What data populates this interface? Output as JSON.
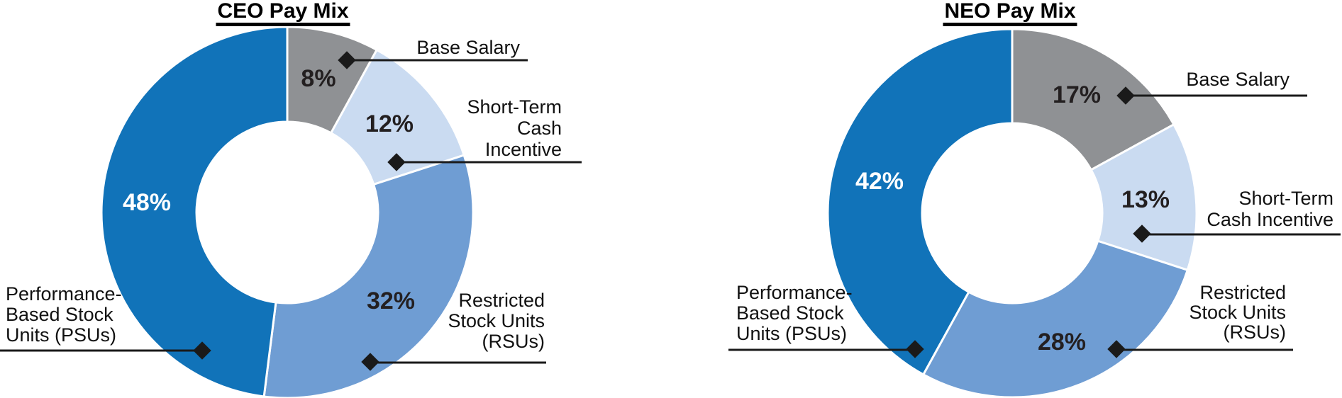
{
  "chart_data": [
    {
      "type": "pie",
      "subtype": "donut",
      "title": "CEO Pay Mix",
      "direction": "clockwise",
      "start_angle": "12 o'clock",
      "categories": [
        "Base Salary",
        "Short-Term Cash Incentive",
        "Restricted Stock Units (RSUs)",
        "Performance-Based Stock Units (PSUs)"
      ],
      "values": [
        8,
        12,
        32,
        48
      ],
      "value_labels": [
        "8%",
        "12%",
        "32%",
        "48%"
      ],
      "colors": [
        "#8F9194",
        "#CADBF1",
        "#6F9DD3",
        "#1173B9"
      ],
      "callout_lines": [
        [
          "Base Salary"
        ],
        [
          "Short-Term",
          "Cash",
          "Incentive"
        ],
        [
          "Restricted",
          "Stock Units",
          "(RSUs)"
        ],
        [
          "Performance-",
          "Based Stock",
          "Units (PSUs)"
        ]
      ]
    },
    {
      "type": "pie",
      "subtype": "donut",
      "title": "NEO Pay Mix",
      "direction": "clockwise",
      "start_angle": "12 o'clock",
      "categories": [
        "Base Salary",
        "Short-Term Cash Incentive",
        "Restricted Stock Units (RSUs)",
        "Performance-Based Stock Units (PSUs)"
      ],
      "values": [
        17,
        13,
        28,
        42
      ],
      "value_labels": [
        "17%",
        "13%",
        "28%",
        "42%"
      ],
      "colors": [
        "#8F9194",
        "#CADBF1",
        "#6F9DD3",
        "#1173B9"
      ],
      "callout_lines": [
        [
          "Base Salary"
        ],
        [
          "Short-Term",
          "Cash Incentive"
        ],
        [
          "Restricted",
          "Stock Units",
          "(RSUs)"
        ],
        [
          "Performance-",
          "Based Stock",
          "Units (PSUs)"
        ]
      ]
    }
  ],
  "styles": {
    "leader_line_color": "#1A1A1A",
    "marker_color": "#1A1A1A",
    "percent_label_dark": "#231F20",
    "percent_label_light": "#FFFFFF",
    "separator_color": "#FFFFFF"
  }
}
